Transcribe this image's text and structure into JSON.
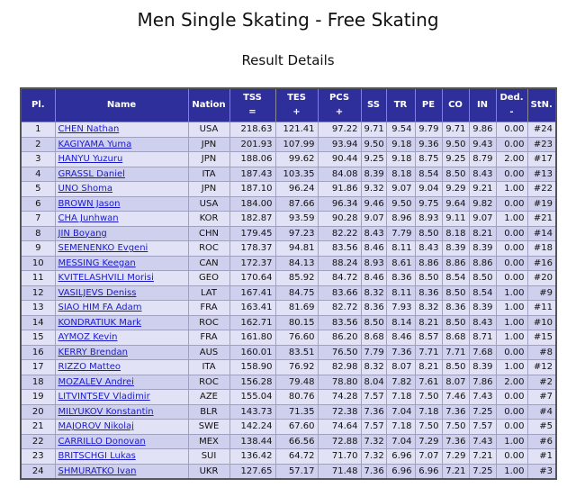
{
  "header": {
    "title": "Men Single Skating - Free Skating",
    "subtitle": "Result Details"
  },
  "table": {
    "columns": [
      [
        "Pl."
      ],
      [
        "Name"
      ],
      [
        "Nation"
      ],
      [
        "TSS",
        "="
      ],
      [
        "TES",
        "+"
      ],
      [
        "PCS",
        "+"
      ],
      [
        "SS"
      ],
      [
        "TR"
      ],
      [
        "PE"
      ],
      [
        "CO"
      ],
      [
        "IN"
      ],
      [
        "Ded.",
        "-"
      ],
      [
        "StN."
      ]
    ],
    "rows": [
      [
        "1",
        "CHEN Nathan",
        "USA",
        "218.63",
        "121.41",
        "97.22",
        "9.71",
        "9.54",
        "9.79",
        "9.71",
        "9.86",
        "0.00",
        "#24"
      ],
      [
        "2",
        "KAGIYAMA Yuma",
        "JPN",
        "201.93",
        "107.99",
        "93.94",
        "9.50",
        "9.18",
        "9.36",
        "9.50",
        "9.43",
        "0.00",
        "#23"
      ],
      [
        "3",
        "HANYU Yuzuru",
        "JPN",
        "188.06",
        "99.62",
        "90.44",
        "9.25",
        "9.18",
        "8.75",
        "9.25",
        "8.79",
        "2.00",
        "#17"
      ],
      [
        "4",
        "GRASSL Daniel",
        "ITA",
        "187.43",
        "103.35",
        "84.08",
        "8.39",
        "8.18",
        "8.54",
        "8.50",
        "8.43",
        "0.00",
        "#13"
      ],
      [
        "5",
        "UNO Shoma",
        "JPN",
        "187.10",
        "96.24",
        "91.86",
        "9.32",
        "9.07",
        "9.04",
        "9.29",
        "9.21",
        "1.00",
        "#22"
      ],
      [
        "6",
        "BROWN Jason",
        "USA",
        "184.00",
        "87.66",
        "96.34",
        "9.46",
        "9.50",
        "9.75",
        "9.64",
        "9.82",
        "0.00",
        "#19"
      ],
      [
        "7",
        "CHA Junhwan",
        "KOR",
        "182.87",
        "93.59",
        "90.28",
        "9.07",
        "8.96",
        "8.93",
        "9.11",
        "9.07",
        "1.00",
        "#21"
      ],
      [
        "8",
        "JIN Boyang",
        "CHN",
        "179.45",
        "97.23",
        "82.22",
        "8.43",
        "7.79",
        "8.50",
        "8.18",
        "8.21",
        "0.00",
        "#14"
      ],
      [
        "9",
        "SEMENENKO Evgeni",
        "ROC",
        "178.37",
        "94.81",
        "83.56",
        "8.46",
        "8.11",
        "8.43",
        "8.39",
        "8.39",
        "0.00",
        "#18"
      ],
      [
        "10",
        "MESSING Keegan",
        "CAN",
        "172.37",
        "84.13",
        "88.24",
        "8.93",
        "8.61",
        "8.86",
        "8.86",
        "8.86",
        "0.00",
        "#16"
      ],
      [
        "11",
        "KVITELASHVILI Morisi",
        "GEO",
        "170.64",
        "85.92",
        "84.72",
        "8.46",
        "8.36",
        "8.50",
        "8.54",
        "8.50",
        "0.00",
        "#20"
      ],
      [
        "12",
        "VASILJEVS Deniss",
        "LAT",
        "167.41",
        "84.75",
        "83.66",
        "8.32",
        "8.11",
        "8.36",
        "8.50",
        "8.54",
        "1.00",
        "#9"
      ],
      [
        "13",
        "SIAO HIM FA Adam",
        "FRA",
        "163.41",
        "81.69",
        "82.72",
        "8.36",
        "7.93",
        "8.32",
        "8.36",
        "8.39",
        "1.00",
        "#11"
      ],
      [
        "14",
        "KONDRATIUK Mark",
        "ROC",
        "162.71",
        "80.15",
        "83.56",
        "8.50",
        "8.14",
        "8.21",
        "8.50",
        "8.43",
        "1.00",
        "#10"
      ],
      [
        "15",
        "AYMOZ Kevin",
        "FRA",
        "161.80",
        "76.60",
        "86.20",
        "8.68",
        "8.46",
        "8.57",
        "8.68",
        "8.71",
        "1.00",
        "#15"
      ],
      [
        "16",
        "KERRY Brendan",
        "AUS",
        "160.01",
        "83.51",
        "76.50",
        "7.79",
        "7.36",
        "7.71",
        "7.71",
        "7.68",
        "0.00",
        "#8"
      ],
      [
        "17",
        "RIZZO Matteo",
        "ITA",
        "158.90",
        "76.92",
        "82.98",
        "8.32",
        "8.07",
        "8.21",
        "8.50",
        "8.39",
        "1.00",
        "#12"
      ],
      [
        "18",
        "MOZALEV Andrei",
        "ROC",
        "156.28",
        "79.48",
        "78.80",
        "8.04",
        "7.82",
        "7.61",
        "8.07",
        "7.86",
        "2.00",
        "#2"
      ],
      [
        "19",
        "LITVINTSEV Vladimir",
        "AZE",
        "155.04",
        "80.76",
        "74.28",
        "7.57",
        "7.18",
        "7.50",
        "7.46",
        "7.43",
        "0.00",
        "#7"
      ],
      [
        "20",
        "MILYUKOV Konstantin",
        "BLR",
        "143.73",
        "71.35",
        "72.38",
        "7.36",
        "7.04",
        "7.18",
        "7.36",
        "7.25",
        "0.00",
        "#4"
      ],
      [
        "21",
        "MAJOROV Nikolaj",
        "SWE",
        "142.24",
        "67.60",
        "74.64",
        "7.57",
        "7.18",
        "7.50",
        "7.50",
        "7.57",
        "0.00",
        "#5"
      ],
      [
        "22",
        "CARRILLO Donovan",
        "MEX",
        "138.44",
        "66.56",
        "72.88",
        "7.32",
        "7.04",
        "7.29",
        "7.36",
        "7.43",
        "1.00",
        "#6"
      ],
      [
        "23",
        "BRITSCHGI Lukas",
        "SUI",
        "136.42",
        "64.72",
        "71.70",
        "7.32",
        "6.96",
        "7.07",
        "7.29",
        "7.21",
        "0.00",
        "#1"
      ],
      [
        "24",
        "SHMURATKO Ivan",
        "UKR",
        "127.65",
        "57.17",
        "71.48",
        "7.36",
        "6.96",
        "6.96",
        "7.21",
        "7.25",
        "1.00",
        "#3"
      ]
    ]
  }
}
